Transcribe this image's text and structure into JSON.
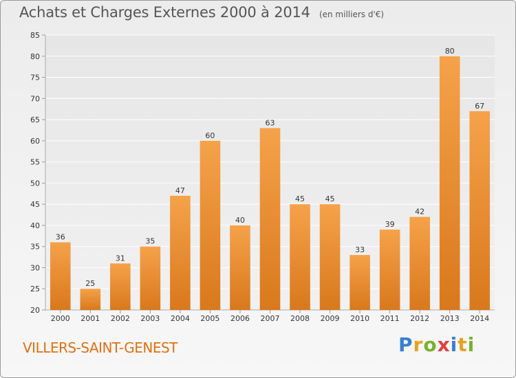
{
  "header": {
    "title": "Achats et Charges Externes 2000 à 2014",
    "subtitle": "(en milliers d'€)"
  },
  "footer": {
    "place": "VILLERS-SAINT-GENEST",
    "logo_letters": [
      {
        "ch": "P",
        "color": "#3a7fd0"
      },
      {
        "ch": "r",
        "color": "#e8a020"
      },
      {
        "ch": "o",
        "color": "#7ab030"
      },
      {
        "ch": "x",
        "color": "#e04040"
      },
      {
        "ch": "i",
        "color": "#3a7fd0"
      },
      {
        "ch": "t",
        "color": "#e8a020"
      },
      {
        "ch": "i",
        "color": "#7ab030"
      }
    ]
  },
  "chart_data": {
    "type": "bar",
    "title": "Achats et Charges Externes 2000 à 2014",
    "subtitle": "(en milliers d'€)",
    "categories": [
      "2000",
      "2001",
      "2002",
      "2003",
      "2004",
      "2005",
      "2006",
      "2007",
      "2008",
      "2009",
      "2010",
      "2011",
      "2012",
      "2013",
      "2014"
    ],
    "values": [
      36,
      25,
      31,
      35,
      47,
      60,
      40,
      63,
      45,
      45,
      33,
      39,
      42,
      80,
      67
    ],
    "ylim": [
      20,
      85
    ],
    "yticks": [
      20,
      25,
      30,
      35,
      40,
      45,
      50,
      55,
      60,
      65,
      70,
      75,
      80,
      85
    ],
    "grid": true,
    "bar_color_top": "#f5a24a",
    "bar_color_bottom": "#d9781c",
    "data_labels": true
  }
}
